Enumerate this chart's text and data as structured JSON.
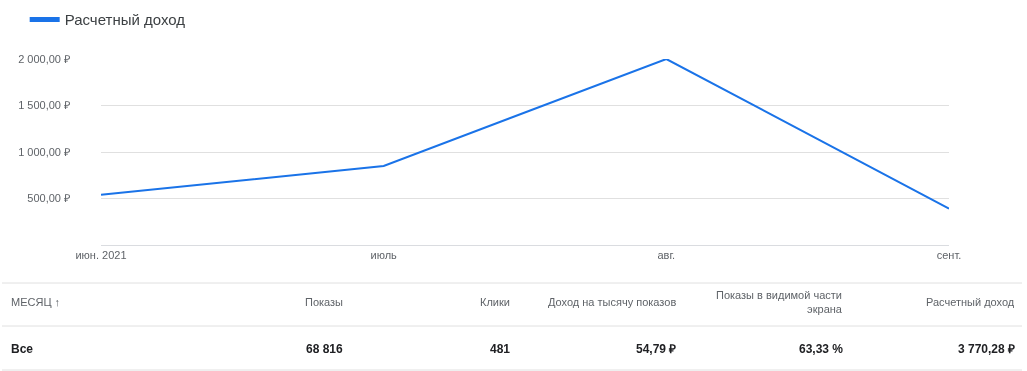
{
  "chart_data": {
    "type": "line",
    "categories": [
      "июн. 2021",
      "июль",
      "авг.",
      "сент."
    ],
    "series": [
      {
        "name": "Расчетный доход",
        "color": "#1a73e8",
        "values": [
          540,
          850,
          2000,
          390
        ]
      }
    ],
    "ylim": [
      0,
      2000
    ],
    "yticks": [
      {
        "value": 500,
        "label": "500,00 ₽"
      },
      {
        "value": 1000,
        "label": "1 000,00 ₽"
      },
      {
        "value": 1500,
        "label": "1 500,00 ₽"
      },
      {
        "value": 2000,
        "label": "2 000,00 ₽"
      }
    ],
    "grid": "y",
    "legend": "top left",
    "marker": "none",
    "line_style": "solid",
    "annotations": [
      "МЕСЯЦ ↑",
      "Показы",
      "Клики",
      "Доход на тысячу показов",
      "Показы в видимой части экрана",
      "Расчетный доход",
      "Все",
      "68 816",
      "481",
      "54,79 ₽",
      "63,33 %",
      "3 770,28 ₽"
    ]
  }
}
